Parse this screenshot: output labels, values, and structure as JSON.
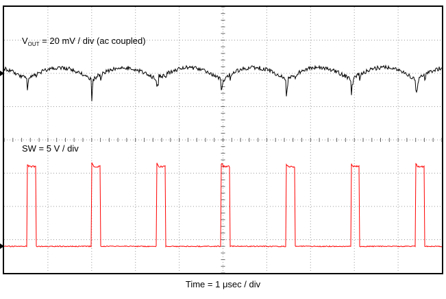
{
  "labels": {
    "ch1_prefix": "V",
    "ch1_sub": "OUT",
    "ch1_rest": " = 20 mV / div (ac coupled)",
    "ch2": "SW = 5 V / div",
    "time": "Time = 1 μsec / div"
  },
  "colors": {
    "ch1_trace": "#000000",
    "ch2_trace": "#ff0000",
    "grid": "#999999",
    "center_ticks": "#666666",
    "border": "#000000",
    "background": "#ffffff",
    "text": "#000000"
  },
  "chart_data": {
    "type": "line",
    "title": "Oscilloscope capture — output ripple (top, black) and switch node (bottom, red)",
    "xlabel": "Time = 1 μsec / div",
    "x_divisions": 10,
    "y_divisions": 8,
    "time_per_div_us": 1,
    "x_range_us": [
      0,
      10
    ],
    "grid_style": "dotted graticule with center-axis tick marks",
    "series": [
      {
        "name": "VOUT",
        "label": "VOUT = 20 mV / div (ac coupled)",
        "color": "#000000",
        "units_per_div": "20 mV",
        "mv_per_div": 20,
        "coupling": "ac",
        "center_divs_from_top": 2.0,
        "ripple_mv_pp": 7,
        "edge_spike_mv": 10,
        "edge_noise_mv": 4,
        "noise_mv": 1.2,
        "shape": "scalloped ripple arcs with sharp switching spikes at each SW edge"
      },
      {
        "name": "SW",
        "label": "SW = 5 V / div",
        "color": "#ff0000",
        "units_per_div": "5 V",
        "v_per_div": 5,
        "zero_divs_from_top": 7.2,
        "low_v": 0,
        "high_v": 12,
        "overshoot_v": 0.5,
        "noise_v": 0.07,
        "shape": "rectangular pulse train, 7 pulses visible"
      }
    ],
    "switching": {
      "period_us": 1.48,
      "pulse_width_us": 0.2,
      "first_edge_us": 0.52,
      "frequency_khz_approx": 676
    }
  }
}
